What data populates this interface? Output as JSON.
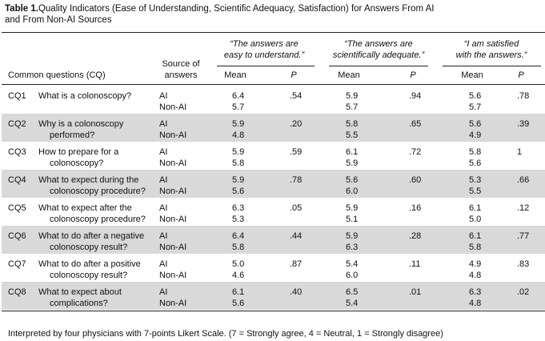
{
  "header": {
    "label": "Table 1.",
    "title": "Quality Indicators (Ease of Understanding, Scientific Adequacy, Satisfaction) for Answers From AI and From Non-AI Sources"
  },
  "table": {
    "groups": [
      [
        "“The answers are",
        "easy to understand.”"
      ],
      [
        "“The answers are",
        "scientifically adequate.”"
      ],
      [
        "“I am satisfied",
        "with the answers.”"
      ]
    ],
    "columns": {
      "question": "Common questions (CQ)",
      "source": [
        "Source of",
        "answers"
      ],
      "mean": "Mean",
      "p": "P"
    },
    "rows": [
      {
        "id": "CQ1",
        "question": [
          "What is a colonoscopy?"
        ],
        "sources": [
          "AI",
          "Non-AI"
        ],
        "m1": [
          "6.4",
          "5.7"
        ],
        "p1": ".54",
        "m2": [
          "5.9",
          "5.7"
        ],
        "p2": ".94",
        "m3": [
          "5.6",
          "5.7"
        ],
        "p3": ".78"
      },
      {
        "id": "CQ2",
        "question": [
          "Why is a colonoscopy",
          "performed?"
        ],
        "sources": [
          "AI",
          "Non-AI"
        ],
        "m1": [
          "5.9",
          "4.8"
        ],
        "p1": ".20",
        "m2": [
          "5.8",
          "5.5"
        ],
        "p2": ".65",
        "m3": [
          "5.6",
          "4.9"
        ],
        "p3": ".39"
      },
      {
        "id": "CQ3",
        "question": [
          "How to prepare for a",
          "colonoscopy?"
        ],
        "sources": [
          "AI",
          "Non-AI"
        ],
        "m1": [
          "5.9",
          "5.8"
        ],
        "p1": ".59",
        "m2": [
          "6.1",
          "5.9"
        ],
        "p2": ".72",
        "m3": [
          "5.8",
          "5.6"
        ],
        "p3": "1"
      },
      {
        "id": "CQ4",
        "question": [
          "What to expect during the",
          "colonoscopy procedure?"
        ],
        "sources": [
          "AI",
          "Non-AI"
        ],
        "m1": [
          "5.9",
          "5.6"
        ],
        "p1": ".78",
        "m2": [
          "5.6",
          "6.0"
        ],
        "p2": ".60",
        "m3": [
          "5.3",
          "5.5"
        ],
        "p3": ".66"
      },
      {
        "id": "CQ5",
        "question": [
          "What to expect after the",
          "colonoscopy procedure?"
        ],
        "sources": [
          "AI",
          "Non-AI"
        ],
        "m1": [
          "6.3",
          "5.3"
        ],
        "p1": ".05",
        "m2": [
          "5.9",
          "5.1"
        ],
        "p2": ".16",
        "m3": [
          "6.1",
          "5.0"
        ],
        "p3": ".12"
      },
      {
        "id": "CQ6",
        "question": [
          "What to do after a negative",
          "colonoscopy result?"
        ],
        "sources": [
          "AI",
          "Non-AI"
        ],
        "m1": [
          "6.4",
          "5.8"
        ],
        "p1": ".44",
        "m2": [
          "5.9",
          "6.3"
        ],
        "p2": ".28",
        "m3": [
          "6.1",
          "5.8"
        ],
        "p3": ".77"
      },
      {
        "id": "CQ7",
        "question": [
          "What to do after a positive",
          "colonoscopy result?"
        ],
        "sources": [
          "AI",
          "Non-AI"
        ],
        "m1": [
          "5.0",
          "4.6"
        ],
        "p1": ".87",
        "m2": [
          "5.4",
          "6.0"
        ],
        "p2": ".11",
        "m3": [
          "4.9",
          "4.8"
        ],
        "p3": ".83"
      },
      {
        "id": "CQ8",
        "question": [
          "What to expect about",
          "complications?"
        ],
        "sources": [
          "AI",
          "Non-AI"
        ],
        "m1": [
          "6.1",
          "5.6"
        ],
        "p1": ".40",
        "m2": [
          "6.5",
          "5.4"
        ],
        "p2": ".01",
        "m3": [
          "6.3",
          "4.8"
        ],
        "p3": ".02"
      }
    ]
  },
  "footnote": "Interpreted by four physicians with 7-points Likert Scale. (7 = Strongly agree, 4 = Neutral, 1 = Strongly disagree)"
}
